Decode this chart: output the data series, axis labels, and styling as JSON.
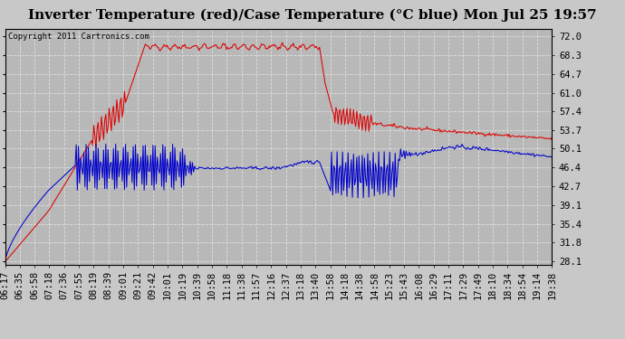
{
  "title": "Inverter Temperature (red)/Case Temperature (°C blue) Mon Jul 25 19:57",
  "copyright": "Copyright 2011 Cartronics.com",
  "ylabel_right_ticks": [
    28.1,
    31.8,
    35.4,
    39.1,
    42.7,
    46.4,
    50.1,
    53.7,
    57.4,
    61.0,
    64.7,
    68.3,
    72.0
  ],
  "ylim": [
    27.5,
    73.5
  ],
  "xlabels": [
    "06:17",
    "06:35",
    "06:58",
    "07:18",
    "07:36",
    "07:55",
    "08:19",
    "08:39",
    "09:01",
    "09:21",
    "09:42",
    "10:01",
    "10:19",
    "10:39",
    "10:58",
    "11:18",
    "11:38",
    "11:57",
    "12:16",
    "12:37",
    "13:18",
    "13:40",
    "13:58",
    "14:18",
    "14:38",
    "14:58",
    "15:23",
    "15:43",
    "16:08",
    "16:29",
    "17:11",
    "17:29",
    "17:49",
    "18:10",
    "18:34",
    "18:54",
    "19:14",
    "19:38"
  ],
  "background_color": "#c8c8c8",
  "plot_bg_color": "#b8b8b8",
  "grid_color": "#e0e0e0",
  "red_color": "#dd0000",
  "blue_color": "#0000cc",
  "title_fontsize": 11,
  "tick_fontsize": 7.5
}
